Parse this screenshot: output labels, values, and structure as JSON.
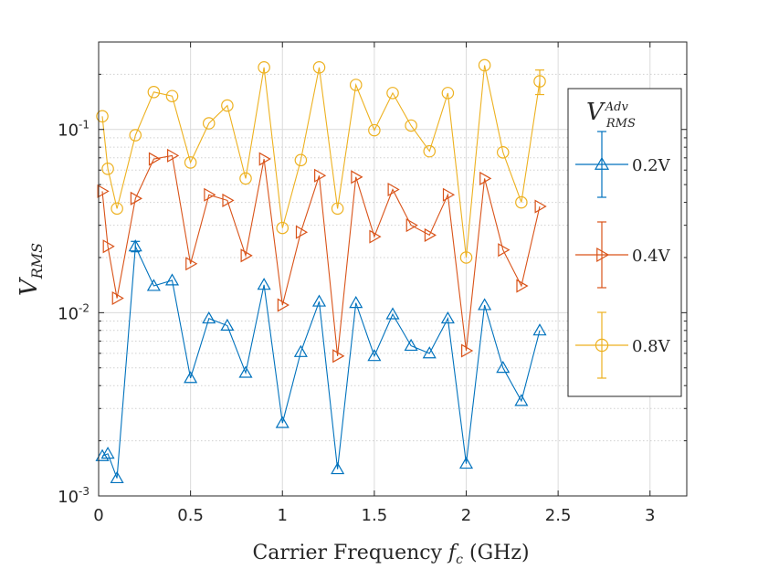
{
  "chart_data": {
    "type": "line",
    "yscale": "log",
    "xlabel_main": "Carrier Frequency ",
    "xlabel_var": "f",
    "xlabel_sub": "c",
    "xlabel_unit": " (GHz)",
    "ylabel_main": "V",
    "ylabel_sub": "RMS",
    "xlim": [
      0,
      3.2
    ],
    "ylim": [
      0.001,
      0.3
    ],
    "xticks": [
      {
        "value": 0,
        "label": "0"
      },
      {
        "value": 0.5,
        "label": "0.5"
      },
      {
        "value": 1,
        "label": "1"
      },
      {
        "value": 1.5,
        "label": "1.5"
      },
      {
        "value": 2,
        "label": "2"
      },
      {
        "value": 2.5,
        "label": "2.5"
      },
      {
        "value": 3,
        "label": "3"
      }
    ],
    "yticks": [
      {
        "value": 0.001,
        "base": "10",
        "exp": "-3"
      },
      {
        "value": 0.01,
        "base": "10",
        "exp": "-2"
      },
      {
        "value": 0.1,
        "base": "10",
        "exp": "-1"
      }
    ],
    "grid": true,
    "legend_title_main": "V",
    "legend_title_sup": "Adv",
    "legend_title_sub": "RMS",
    "legend_position": "right",
    "series": [
      {
        "name": "0.2V",
        "color": "#0072BD",
        "marker": "triangle-up",
        "x": [
          0.02,
          0.05,
          0.1,
          0.2,
          0.3,
          0.4,
          0.5,
          0.6,
          0.7,
          0.8,
          0.9,
          1.0,
          1.1,
          1.2,
          1.3,
          1.4,
          1.5,
          1.6,
          1.7,
          1.8,
          1.9,
          2.0,
          2.1,
          2.2,
          2.3,
          2.4
        ],
        "y": [
          0.00165,
          0.0017,
          0.00125,
          0.023,
          0.014,
          0.015,
          0.0044,
          0.0093,
          0.0085,
          0.0047,
          0.0142,
          0.0025,
          0.0061,
          0.0115,
          0.0014,
          0.0113,
          0.0058,
          0.0098,
          0.0066,
          0.006,
          0.0093,
          0.0015,
          0.011,
          0.005,
          0.0033,
          0.008
        ],
        "err": [
          0,
          0,
          0,
          0.0015,
          0,
          0,
          0,
          0,
          0,
          0,
          0,
          0,
          0,
          0,
          0,
          0,
          0,
          0,
          0,
          0,
          0,
          0,
          0,
          0,
          0,
          0
        ]
      },
      {
        "name": "0.4V",
        "color": "#D95319",
        "marker": "triangle-right",
        "x": [
          0.02,
          0.05,
          0.1,
          0.2,
          0.3,
          0.4,
          0.5,
          0.6,
          0.7,
          0.8,
          0.9,
          1.0,
          1.1,
          1.2,
          1.3,
          1.4,
          1.5,
          1.6,
          1.7,
          1.8,
          1.9,
          2.0,
          2.1,
          2.2,
          2.3,
          2.4
        ],
        "y": [
          0.046,
          0.023,
          0.012,
          0.042,
          0.069,
          0.072,
          0.0185,
          0.044,
          0.041,
          0.0205,
          0.069,
          0.011,
          0.0275,
          0.056,
          0.0058,
          0.055,
          0.026,
          0.047,
          0.03,
          0.0265,
          0.044,
          0.0062,
          0.054,
          0.022,
          0.014,
          0.038
        ],
        "err": [
          0,
          0,
          0,
          0,
          0,
          0,
          0,
          0,
          0,
          0,
          0,
          0,
          0,
          0,
          0,
          0,
          0,
          0,
          0,
          0,
          0,
          0,
          0,
          0,
          0,
          0
        ]
      },
      {
        "name": "0.8V",
        "color": "#EDB120",
        "marker": "circle",
        "x": [
          0.02,
          0.05,
          0.1,
          0.2,
          0.3,
          0.4,
          0.5,
          0.6,
          0.7,
          0.8,
          0.9,
          1.0,
          1.1,
          1.2,
          1.3,
          1.4,
          1.5,
          1.6,
          1.7,
          1.8,
          1.9,
          2.0,
          2.1,
          2.2,
          2.3,
          2.4
        ],
        "y": [
          0.118,
          0.061,
          0.037,
          0.093,
          0.16,
          0.152,
          0.066,
          0.108,
          0.135,
          0.054,
          0.218,
          0.029,
          0.068,
          0.218,
          0.037,
          0.175,
          0.099,
          0.158,
          0.105,
          0.076,
          0.158,
          0.02,
          0.224,
          0.075,
          0.04,
          0.183
        ],
        "err": [
          0,
          0,
          0,
          0,
          0,
          0,
          0,
          0,
          0,
          0,
          0,
          0,
          0,
          0,
          0,
          0,
          0,
          0,
          0,
          0,
          0,
          0,
          0,
          0,
          0,
          0.028
        ]
      }
    ]
  }
}
